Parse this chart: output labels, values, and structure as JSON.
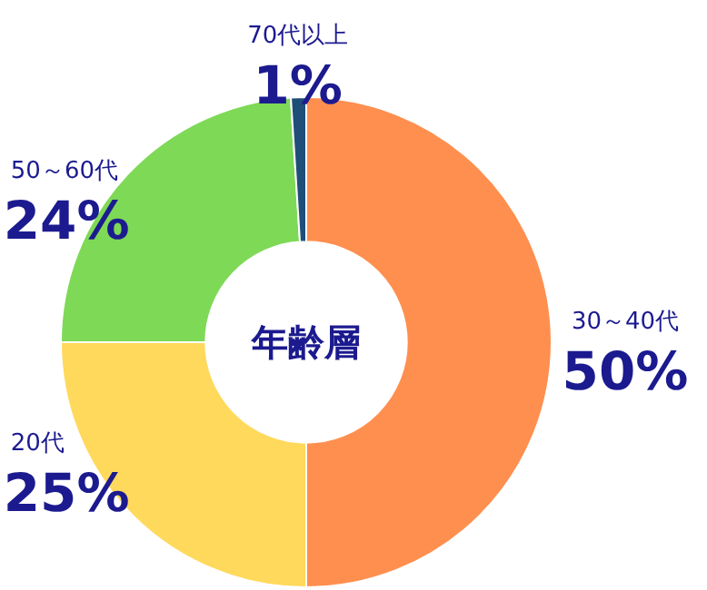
{
  "chart_data": {
    "type": "donut",
    "title": "年齢層",
    "categories": [
      "30～40代",
      "20代",
      "50～60代",
      "70代以上"
    ],
    "values": [
      50,
      25,
      24,
      1
    ],
    "value_labels": [
      "50%",
      "25%",
      "24%",
      "1%"
    ],
    "colors": [
      "#ff8f4f",
      "#ffd95c",
      "#7ed957",
      "#1f4e79"
    ]
  }
}
